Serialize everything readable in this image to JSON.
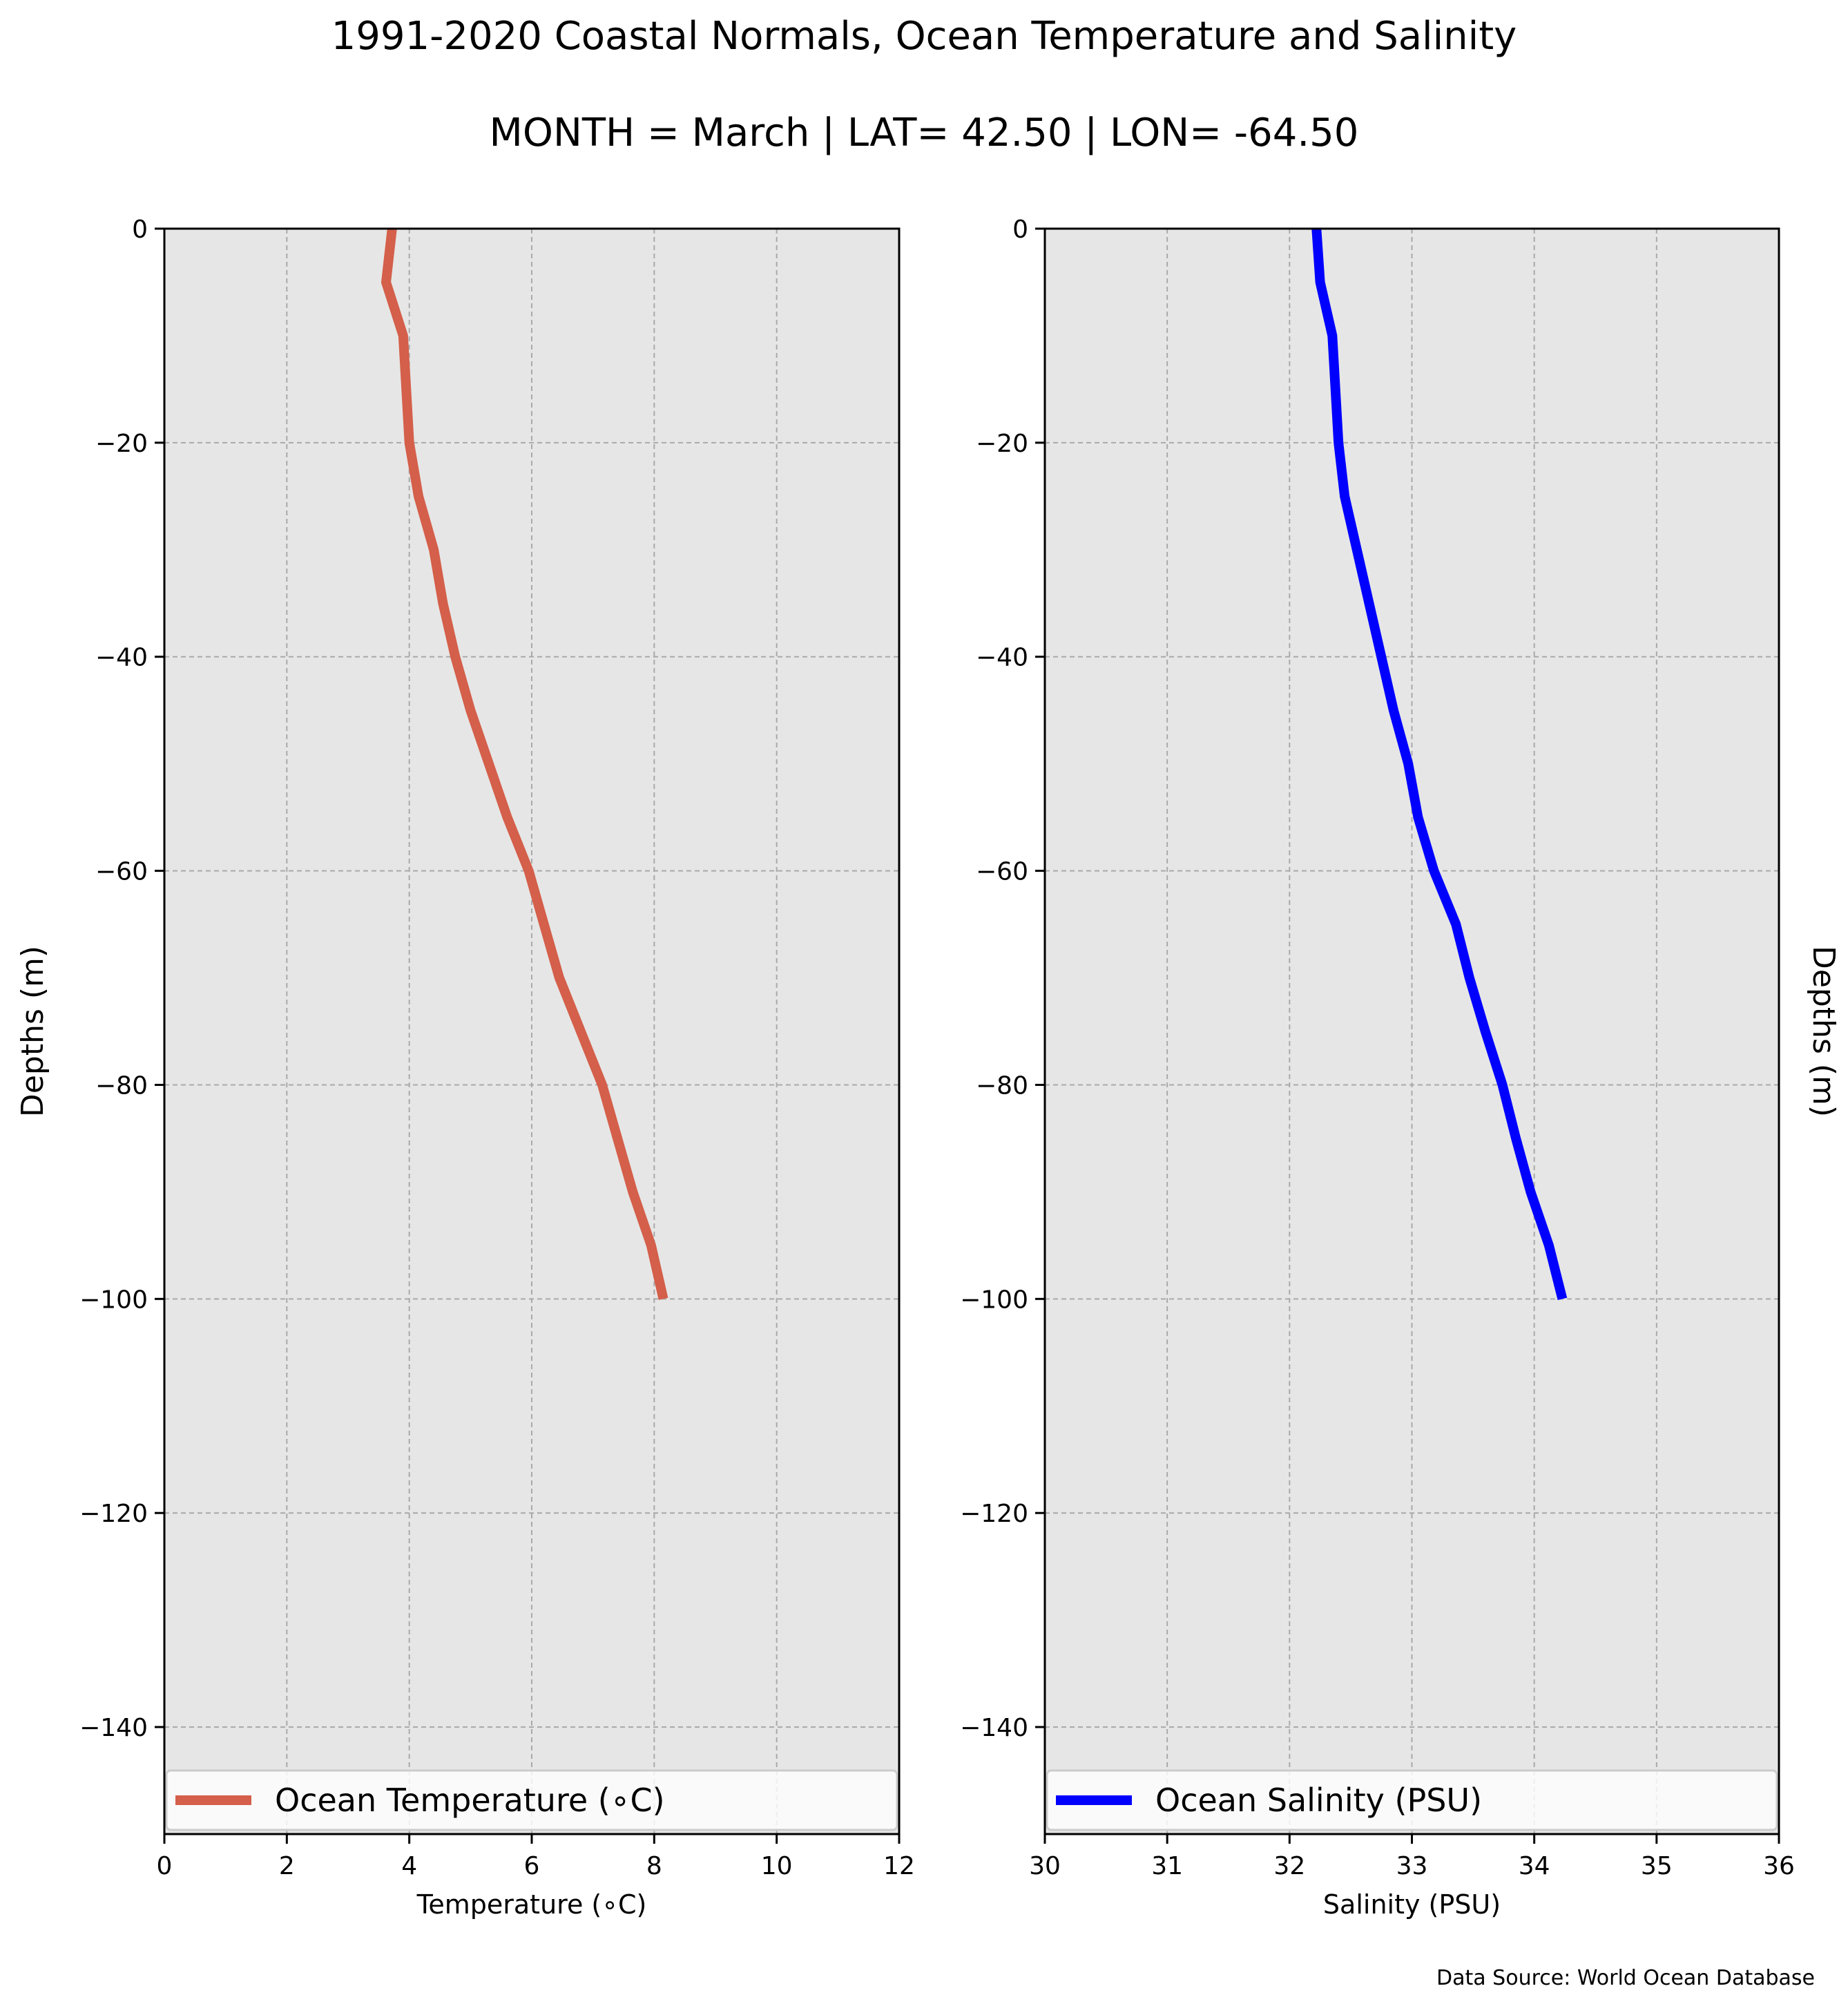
{
  "figure": {
    "title_line1": "1991-2020 Coastal Normals, Ocean Temperature and Salinity",
    "title_line2": "MONTH = March | LAT= 42.50 | LON= -64.50",
    "source_note": "Data Source: World Ocean Database",
    "background_color": "#e6e6e6",
    "grid_color": "#a9a9a9"
  },
  "chart_data": [
    {
      "type": "line",
      "title": "",
      "xlabel": "Temperature (∘C)",
      "ylabel": "Depths (m)",
      "xlim": [
        0,
        12
      ],
      "ylim": [
        -150,
        0
      ],
      "xticks": [
        0,
        2,
        4,
        6,
        8,
        10,
        12
      ],
      "xtick_labels": [
        "0",
        "2",
        "4",
        "6",
        "8",
        "10",
        "12"
      ],
      "yticks": [
        0,
        -20,
        -40,
        -60,
        -80,
        -100,
        -120,
        -140
      ],
      "ytick_labels": [
        "0",
        "−20",
        "−40",
        "−60",
        "−80",
        "−100",
        "−120",
        "−140"
      ],
      "grid": true,
      "legend_position": "bottom",
      "series": [
        {
          "name": "Ocean Temperature (∘C)",
          "color": "#d45f4a",
          "x": [
            3.72,
            3.62,
            3.9,
            4.0,
            4.15,
            4.4,
            4.55,
            4.75,
            5.0,
            5.3,
            5.6,
            5.95,
            6.2,
            6.45,
            6.8,
            7.15,
            7.4,
            7.65,
            7.95,
            8.15
          ],
          "y": [
            0,
            -5,
            -10,
            -20,
            -25,
            -30,
            -35,
            -40,
            -45,
            -50,
            -55,
            -60,
            -65,
            -70,
            -75,
            -80,
            -85,
            -90,
            -95,
            -100
          ]
        }
      ]
    },
    {
      "type": "line",
      "title": "",
      "xlabel": "Salinity (PSU)",
      "ylabel": "Depths (m)",
      "xlim": [
        30,
        36
      ],
      "ylim": [
        -150,
        0
      ],
      "xticks": [
        30,
        31,
        32,
        33,
        34,
        35,
        36
      ],
      "xtick_labels": [
        "30",
        "31",
        "32",
        "33",
        "34",
        "35",
        "36"
      ],
      "yticks": [
        0,
        -20,
        -40,
        -60,
        -80,
        -100,
        -120,
        -140
      ],
      "ytick_labels": [
        "0",
        "−20",
        "−40",
        "−60",
        "−80",
        "−100",
        "−120",
        "−140"
      ],
      "grid": true,
      "legend_position": "bottom",
      "series": [
        {
          "name": "Ocean Salinity (PSU)",
          "color": "#0000ff",
          "x": [
            32.22,
            32.25,
            32.35,
            32.4,
            32.45,
            32.55,
            32.65,
            32.75,
            32.85,
            32.97,
            33.05,
            33.18,
            33.36,
            33.47,
            33.6,
            33.74,
            33.85,
            33.97,
            34.12,
            34.23
          ],
          "y": [
            0,
            -5,
            -10,
            -20,
            -25,
            -30,
            -35,
            -40,
            -45,
            -50,
            -55,
            -60,
            -65,
            -70,
            -75,
            -80,
            -85,
            -90,
            -95,
            -100
          ]
        }
      ]
    }
  ]
}
